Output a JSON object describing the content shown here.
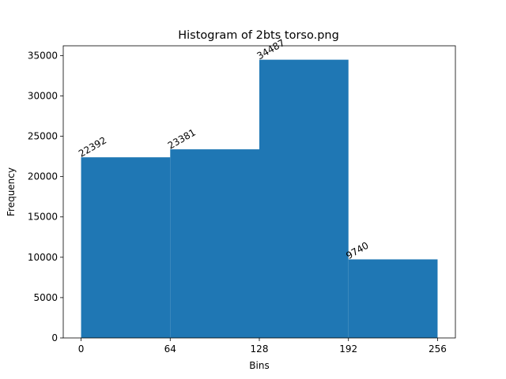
{
  "chart_data": {
    "type": "bar",
    "title": "Histogram of 2bts torso.png",
    "xlabel": "Bins",
    "ylabel": "Frequency",
    "bin_edges": [
      0,
      64,
      128,
      192,
      256
    ],
    "values": [
      22392,
      23381,
      34487,
      9740
    ],
    "value_labels": [
      "22392",
      "23381",
      "34487",
      "9740"
    ],
    "xticks": [
      0,
      64,
      128,
      192,
      256
    ],
    "xtick_labels": [
      "0",
      "64",
      "128",
      "192",
      "256"
    ],
    "yticks": [
      0,
      5000,
      10000,
      15000,
      20000,
      25000,
      30000,
      35000
    ],
    "ytick_labels": [
      "0",
      "5000",
      "10000",
      "15000",
      "20000",
      "25000",
      "30000",
      "35000"
    ],
    "xlim": [
      -12.8,
      268.8
    ],
    "ylim": [
      0,
      36211
    ],
    "grid": false,
    "bar_color": "#1f77b4"
  }
}
